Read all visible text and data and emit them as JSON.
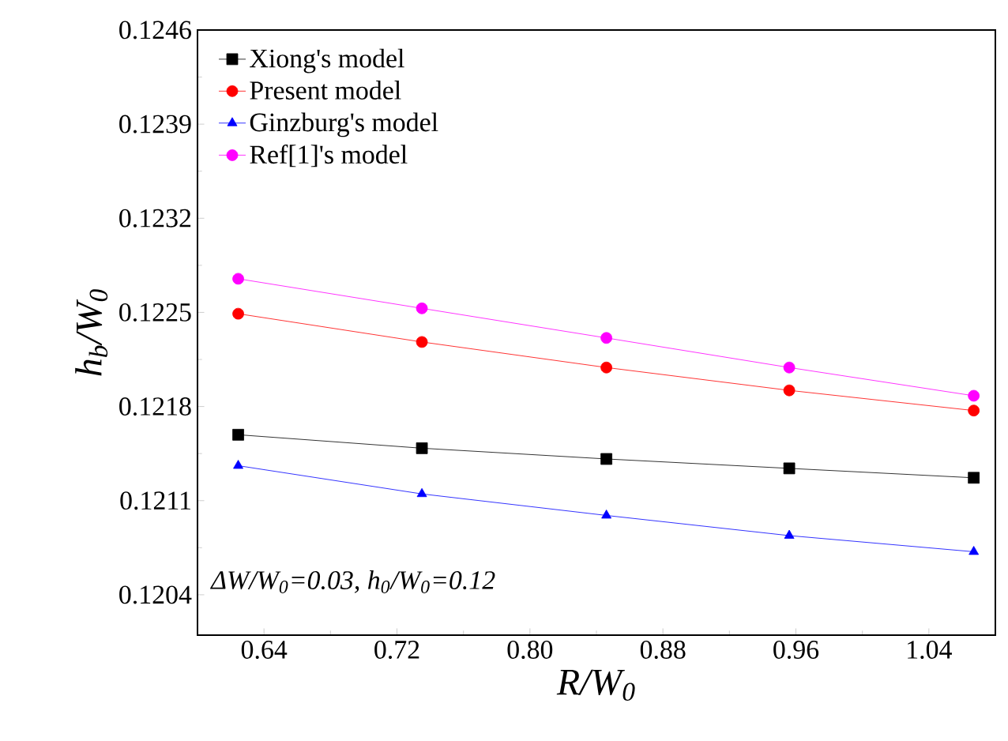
{
  "chart_data": {
    "type": "line",
    "x": [
      0.6245,
      0.735,
      0.846,
      0.956,
      1.067
    ],
    "series": [
      {
        "name": "Xiong's model",
        "color": "#000000",
        "marker": "square",
        "values": [
          0.12159,
          0.12149,
          0.12141,
          0.12134,
          0.12127
        ]
      },
      {
        "name": "Present model",
        "color": "#ff0000",
        "marker": "circle",
        "values": [
          0.12249,
          0.12228,
          0.12209,
          0.12192,
          0.12177
        ]
      },
      {
        "name": "Ginzburg's model",
        "color": "#0000ff",
        "marker": "triangle",
        "values": [
          0.12136,
          0.12115,
          0.12099,
          0.12084,
          0.12072
        ]
      },
      {
        "name": "Ref[1]'s model",
        "color": "#ff00ff",
        "marker": "circle",
        "values": [
          0.12275,
          0.12253,
          0.12231,
          0.12209,
          0.12188
        ]
      }
    ],
    "xlabel": "R/W$_{0}$",
    "ylabel": "h$_{b}$/W$_{0}$",
    "annotations": [
      "ΔW/W$_{0}$=0.03, h$_{0}$/W$_{0}$=0.12"
    ],
    "xlim": [
      0.6,
      1.08
    ],
    "xticks": [
      0.64,
      0.72,
      {
        "value": 0.8,
        "label": "0.80"
      },
      0.88,
      0.96,
      1.04
    ],
    "ylim": [
      0.1201,
      0.1246
    ],
    "yticks": [
      0.1204,
      0.1211,
      0.1218,
      0.1225,
      0.1232,
      0.1239,
      0.1246
    ],
    "legend": "top left",
    "grid": false,
    "line_style": "solid"
  }
}
